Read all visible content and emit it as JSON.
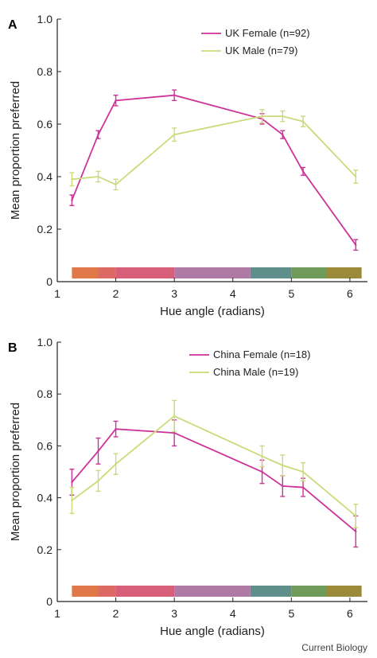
{
  "chart_data": [
    {
      "type": "line",
      "panel_label": "A",
      "xlabel": "Hue angle (radians)",
      "ylabel": "Mean proportion preferred",
      "xlim": [
        1,
        6.3
      ],
      "ylim": [
        0,
        1.0
      ],
      "xticks": [
        "1",
        "2",
        "3",
        "4",
        "5",
        "6"
      ],
      "yticks": [
        "0",
        "0.2",
        "0.4",
        "0.6",
        "0.8",
        "1.0"
      ],
      "legend_position": "top-right",
      "grid": false,
      "series": [
        {
          "name": "UK Female (n=92)",
          "color": "#cc3399",
          "x": [
            1.25,
            1.7,
            2.0,
            3.0,
            4.5,
            4.85,
            5.2,
            6.1
          ],
          "y": [
            0.31,
            0.56,
            0.69,
            0.71,
            0.62,
            0.56,
            0.42,
            0.14
          ],
          "err": [
            0.02,
            0.015,
            0.02,
            0.02,
            0.02,
            0.015,
            0.015,
            0.02
          ]
        },
        {
          "name": "UK Male (n=79)",
          "color": "#c8dc7a",
          "x": [
            1.25,
            1.7,
            2.0,
            3.0,
            4.5,
            4.85,
            5.2,
            6.1
          ],
          "y": [
            0.39,
            0.4,
            0.37,
            0.56,
            0.63,
            0.63,
            0.61,
            0.4
          ],
          "err": [
            0.025,
            0.02,
            0.02,
            0.025,
            0.025,
            0.02,
            0.02,
            0.025
          ]
        }
      ],
      "hue_bar_colors": [
        "#e0784a",
        "#de6a66",
        "#d85f7a",
        "#b07aa6",
        "#5f8f8a",
        "#6f9a5a",
        "#9a8a3a"
      ]
    },
    {
      "type": "line",
      "panel_label": "B",
      "xlabel": "Hue angle (radians)",
      "ylabel": "Mean proportion preferred",
      "xlim": [
        1,
        6.3
      ],
      "ylim": [
        0,
        1.0
      ],
      "xticks": [
        "1",
        "2",
        "3",
        "4",
        "5",
        "6"
      ],
      "yticks": [
        "0",
        "0.2",
        "0.4",
        "0.6",
        "0.8",
        "1.0"
      ],
      "legend_position": "top-right",
      "grid": false,
      "series": [
        {
          "name": "China Female (n=18)",
          "color": "#cc3399",
          "x": [
            1.25,
            1.7,
            2.0,
            3.0,
            4.5,
            4.85,
            5.2,
            6.1
          ],
          "y": [
            0.46,
            0.58,
            0.665,
            0.65,
            0.5,
            0.445,
            0.44,
            0.27
          ],
          "err": [
            0.05,
            0.05,
            0.03,
            0.05,
            0.045,
            0.04,
            0.035,
            0.06
          ]
        },
        {
          "name": "China Male (n=19)",
          "color": "#c8dc7a",
          "x": [
            1.25,
            1.7,
            2.0,
            3.0,
            4.5,
            4.85,
            5.2,
            6.1
          ],
          "y": [
            0.39,
            0.465,
            0.53,
            0.715,
            0.56,
            0.525,
            0.5,
            0.33
          ],
          "err": [
            0.05,
            0.04,
            0.04,
            0.06,
            0.04,
            0.04,
            0.035,
            0.045
          ]
        }
      ],
      "hue_bar_colors": [
        "#e0784a",
        "#de6a66",
        "#d85f7a",
        "#b07aa6",
        "#5f8f8a",
        "#6f9a5a",
        "#9a8a3a"
      ]
    }
  ],
  "footer": {
    "credit": "Current Biology"
  }
}
